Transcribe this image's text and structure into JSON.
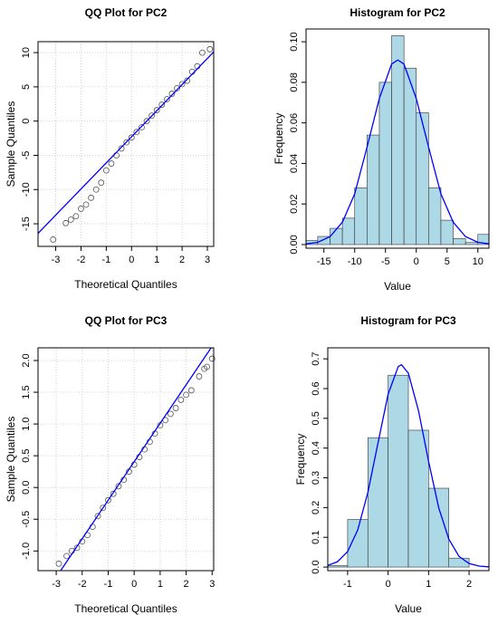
{
  "chart_data": [
    {
      "type": "qq",
      "title": "QQ Plot for PC2",
      "xlabel": "Theoretical Quantiles",
      "ylabel": "Sample Quantiles",
      "xlim": [
        -3.7,
        3.25
      ],
      "ylim": [
        -18.3,
        11.6
      ],
      "xticks": [
        -3,
        -2,
        -1,
        0,
        1,
        2,
        3
      ],
      "yticks": [
        -15,
        -10,
        -5,
        0,
        5,
        10
      ],
      "grid": true,
      "x": [
        -3.1,
        -2.6,
        -2.4,
        -2.2,
        -2.0,
        -1.8,
        -1.6,
        -1.4,
        -1.2,
        -1.0,
        -0.8,
        -0.6,
        -0.4,
        -0.2,
        0,
        0.2,
        0.4,
        0.6,
        0.8,
        1.0,
        1.2,
        1.4,
        1.6,
        1.8,
        2.0,
        2.2,
        2.4,
        2.6,
        2.8,
        3.1
      ],
      "values": [
        -17.3,
        -14.9,
        -14.4,
        -13.9,
        -12.8,
        -12.2,
        -11.2,
        -10.0,
        -9.0,
        -7.2,
        -6.2,
        -5.0,
        -4.0,
        -3.1,
        -2.4,
        -1.6,
        -0.9,
        0,
        0.8,
        1.6,
        2.4,
        3.2,
        4.0,
        4.8,
        5.4,
        5.9,
        7.2,
        8.0,
        10.0,
        10.5
      ],
      "color": "#555555",
      "line": {
        "x": [
          -3.7,
          3.25
        ],
        "values": [
          -16.4,
          10.1
        ],
        "color": "#0000ff"
      }
    },
    {
      "type": "histogram",
      "title": "Histogram for PC2",
      "xlabel": "Value",
      "ylabel": "Frequency",
      "xlim": [
        -17.9,
        11.8
      ],
      "ylim": [
        -0.0018,
        0.1063
      ],
      "xticks": [
        -15,
        -10,
        -5,
        0,
        5,
        10
      ],
      "yticks": [
        {
          "value": 0,
          "label": "0.00"
        },
        {
          "value": 0.02,
          "label": "0.02"
        },
        {
          "value": 0.04,
          "label": "0.04"
        },
        {
          "value": 0.06,
          "label": "0.06"
        },
        {
          "value": 0.08,
          "label": "0.08"
        },
        {
          "value": 0.1,
          "label": "0.10"
        }
      ],
      "grid": false,
      "bins": [
        -18,
        -16,
        -14,
        -12,
        -10,
        -8,
        -6,
        -4,
        -2,
        0,
        2,
        4,
        6,
        8,
        10,
        12
      ],
      "values": [
        0.002,
        0.004,
        0.008,
        0.013,
        0.028,
        0.054,
        0.08,
        0.103,
        0.087,
        0.065,
        0.028,
        0.012,
        0.003,
        0.001,
        0.005
      ],
      "color": "#add8e6",
      "density": {
        "x": [
          -18,
          -16,
          -14,
          -12,
          -10,
          -8,
          -6,
          -4,
          -3,
          -2,
          0,
          2,
          4,
          6,
          8,
          10,
          12
        ],
        "values": [
          0.00026,
          0.0011,
          0.0039,
          0.011,
          0.025,
          0.048,
          0.072,
          0.089,
          0.091,
          0.089,
          0.072,
          0.048,
          0.025,
          0.011,
          0.0039,
          0.0011,
          0.00026
        ],
        "color": "#0000ff"
      }
    },
    {
      "type": "qq",
      "title": "QQ Plot for PC3",
      "xlabel": "Theoretical Quantiles",
      "ylabel": "Sample Quantiles",
      "xlim": [
        -3.7,
        3.06
      ],
      "ylim": [
        -1.31,
        2.2
      ],
      "xticks": [
        -3,
        -2,
        -1,
        0,
        1,
        2,
        3
      ],
      "yticks": [
        {
          "value": -1,
          "label": "-1.0"
        },
        -0.5,
        {
          "value": 0,
          "label": "0.0"
        },
        0.5,
        {
          "value": 1,
          "label": "1.0"
        },
        1.5,
        {
          "value": 2,
          "label": "2.0"
        }
      ],
      "grid": true,
      "x": [
        -2.9,
        -2.6,
        -2.4,
        -2.2,
        -2.0,
        -1.8,
        -1.6,
        -1.4,
        -1.2,
        -1.0,
        -0.8,
        -0.6,
        -0.4,
        -0.2,
        0,
        0.2,
        0.4,
        0.6,
        0.8,
        1.0,
        1.2,
        1.4,
        1.6,
        1.8,
        2.0,
        2.2,
        2.5,
        2.7,
        2.8,
        3.0
      ],
      "values": [
        -1.2,
        -1.08,
        -1.0,
        -0.95,
        -0.85,
        -0.75,
        -0.62,
        -0.45,
        -0.32,
        -0.2,
        -0.1,
        0.02,
        0.12,
        0.25,
        0.36,
        0.48,
        0.6,
        0.72,
        0.85,
        0.98,
        1.06,
        1.16,
        1.25,
        1.38,
        1.46,
        1.53,
        1.75,
        1.87,
        1.9,
        2.03
      ],
      "color": "#555555",
      "line": {
        "x": [
          -2.83,
          2.96
        ],
        "values": [
          -1.31,
          2.2
        ],
        "color": "#0000ff"
      }
    },
    {
      "type": "histogram",
      "title": "Histogram for PC3",
      "xlabel": "Value",
      "ylabel": "Frequency",
      "xlim": [
        -1.49,
        2.49
      ],
      "ylim": [
        -0.012,
        0.737
      ],
      "xticks": [
        -1,
        0,
        1,
        2
      ],
      "yticks": [
        {
          "value": 0,
          "label": "0.0"
        },
        0.1,
        0.2,
        0.3,
        0.4,
        0.5,
        0.6,
        0.7
      ],
      "grid": false,
      "bins": [
        -1.5,
        -1,
        -0.5,
        0,
        0.5,
        1,
        1.5,
        2,
        2.5
      ],
      "values": [
        0.005,
        0.16,
        0.435,
        0.645,
        0.46,
        0.265,
        0.03,
        0
      ],
      "color": "#add8e6",
      "density": {
        "x": [
          -1.5,
          -1.25,
          -1,
          -0.75,
          -0.5,
          -0.25,
          0,
          0.25,
          0.33,
          0.5,
          0.75,
          1,
          1.25,
          1.5,
          1.75,
          2,
          2.25,
          2.5
        ],
        "values": [
          0.0053,
          0.018,
          0.052,
          0.125,
          0.251,
          0.417,
          0.581,
          0.674,
          0.68,
          0.652,
          0.526,
          0.355,
          0.199,
          0.094,
          0.036,
          0.012,
          0.0032,
          0.0007
        ],
        "color": "#0000ff"
      }
    }
  ]
}
